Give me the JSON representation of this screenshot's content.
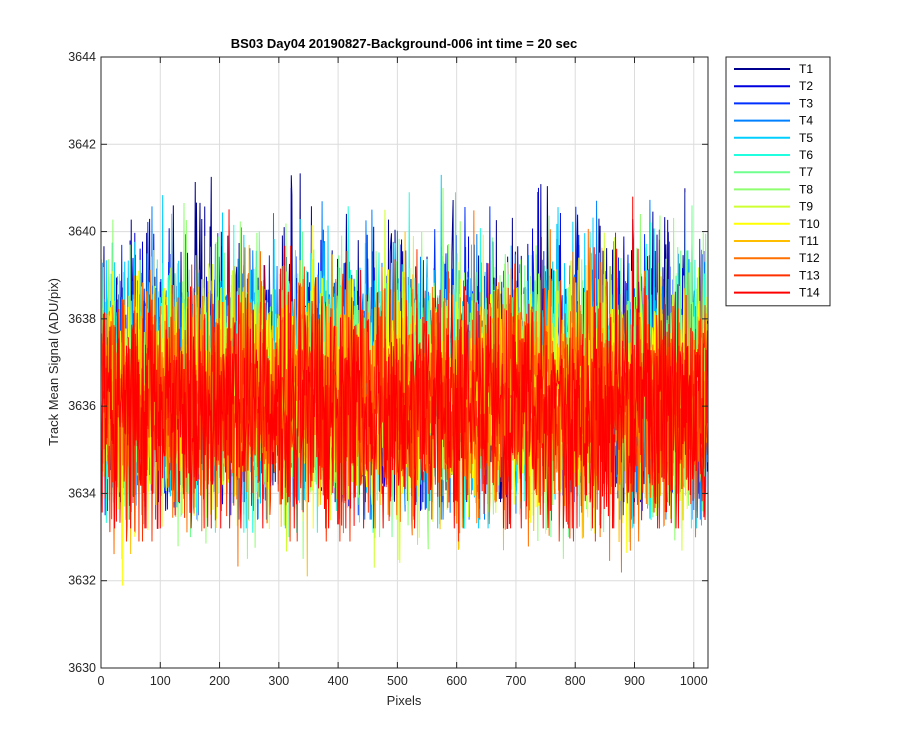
{
  "chart_data": {
    "type": "line",
    "title": "BS03 Day04 20190827-Background-006 int time = 20 sec",
    "xlabel": "Pixels",
    "ylabel": "Track Mean Signal (ADU/pix)",
    "xlim": [
      0,
      1024
    ],
    "ylim": [
      3630,
      3644
    ],
    "x_ticks": [
      0,
      100,
      200,
      300,
      400,
      500,
      600,
      700,
      800,
      900,
      1000
    ],
    "y_ticks": [
      3630,
      3632,
      3634,
      3636,
      3638,
      3640,
      3642,
      3644
    ],
    "grid": true,
    "legend_position": "outside-right",
    "n_points": 1024,
    "series_pattern": "noisy signal around a constant mean (~3636 ADU/pix) spanning roughly 3632–3641 for every series",
    "series": [
      {
        "name": "T1",
        "color": "#00008f",
        "mean": 3636.9,
        "min": 3633.8,
        "max": 3642.1
      },
      {
        "name": "T2",
        "color": "#0000df",
        "mean": 3636.8,
        "min": 3633.6,
        "max": 3641.0
      },
      {
        "name": "T3",
        "color": "#0030ff",
        "mean": 3636.7,
        "min": 3633.5,
        "max": 3640.9
      },
      {
        "name": "T4",
        "color": "#0080ff",
        "mean": 3636.6,
        "min": 3633.4,
        "max": 3641.6
      },
      {
        "name": "T5",
        "color": "#00cfff",
        "mean": 3636.6,
        "min": 3633.2,
        "max": 3641.3
      },
      {
        "name": "T6",
        "color": "#20ffdf",
        "mean": 3636.5,
        "min": 3633.1,
        "max": 3640.9
      },
      {
        "name": "T7",
        "color": "#70ff8f",
        "mean": 3636.5,
        "min": 3633.0,
        "max": 3640.6
      },
      {
        "name": "T8",
        "color": "#8fff70",
        "mean": 3636.4,
        "min": 3632.5,
        "max": 3641.0
      },
      {
        "name": "T9",
        "color": "#cfff30",
        "mean": 3636.3,
        "min": 3632.3,
        "max": 3640.5
      },
      {
        "name": "T10",
        "color": "#ffff00",
        "mean": 3636.2,
        "min": 3631.5,
        "max": 3640.3
      },
      {
        "name": "T11",
        "color": "#ffbf00",
        "mean": 3636.2,
        "min": 3632.1,
        "max": 3640.0
      },
      {
        "name": "T12",
        "color": "#ff7000",
        "mean": 3636.1,
        "min": 3631.8,
        "max": 3640.5
      },
      {
        "name": "T13",
        "color": "#ff3000",
        "mean": 3636.0,
        "min": 3632.9,
        "max": 3640.3
      },
      {
        "name": "T14",
        "color": "#ff0000",
        "mean": 3635.9,
        "min": 3633.2,
        "max": 3640.8
      }
    ]
  }
}
